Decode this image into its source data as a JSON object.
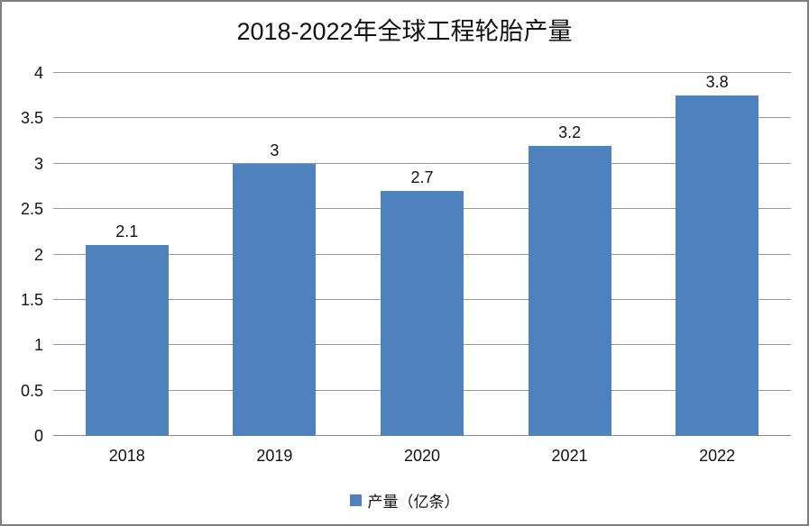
{
  "title": "2018-2022年全球工程轮胎产量",
  "legend": {
    "label": "产量（亿条）",
    "marker_color": "#4f81bd"
  },
  "colors": {
    "bar": "#4f81bd",
    "gridline": "#969696",
    "axis_line": "#8a8a8a",
    "frame_border": "#7f7f7f",
    "background": "#ffffff",
    "text": "#111111"
  },
  "chart_data": {
    "type": "bar",
    "title": "2018-2022年全球工程轮胎产量",
    "categories": [
      "2018",
      "2019",
      "2020",
      "2021",
      "2022"
    ],
    "values": [
      2.1,
      3,
      2.7,
      3.2,
      3.8
    ],
    "data_labels": [
      "2.1",
      "3",
      "2.7",
      "3.2",
      "3.8"
    ],
    "series": [
      {
        "name": "产量（亿条）",
        "values": [
          2.1,
          3,
          2.7,
          3.2,
          3.8
        ]
      }
    ],
    "xlabel": "",
    "ylabel": "",
    "ylim": [
      0,
      4
    ],
    "yticks": [
      0,
      0.5,
      1,
      1.5,
      2,
      2.5,
      3,
      3.5,
      4
    ],
    "ytick_labels": [
      "0",
      "0.5",
      "1",
      "1.5",
      "2",
      "2.5",
      "3",
      "3.5",
      "4"
    ],
    "grid": true,
    "legend_position": "bottom"
  }
}
